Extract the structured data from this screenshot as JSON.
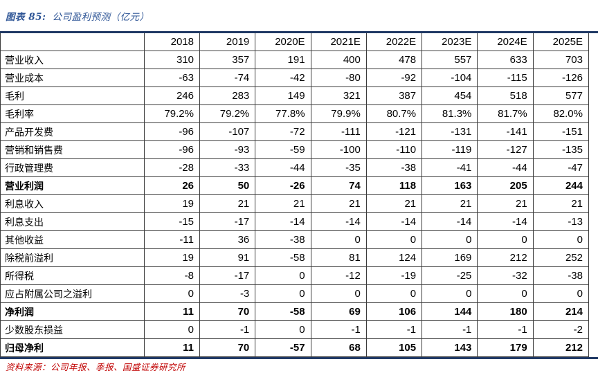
{
  "figure": {
    "caption_prefix": "图表 85:",
    "caption_title": "公司盈利预测（亿元）",
    "source": "资料来源：公司年报、季报、国盛证券研究所"
  },
  "colors": {
    "caption_blue": "#2E5596",
    "rule_navy": "#1F3864",
    "source_red": "#C00000",
    "grid_line": "#3b3b3b"
  },
  "chart_data": {
    "type": "table",
    "title": "公司盈利预测（亿元）",
    "columns": [
      "",
      "2018",
      "2019",
      "2020E",
      "2021E",
      "2022E",
      "2023E",
      "2024E",
      "2025E"
    ],
    "rows": [
      {
        "label": "营业收入",
        "bold": false,
        "values": [
          "310",
          "357",
          "191",
          "400",
          "478",
          "557",
          "633",
          "703"
        ]
      },
      {
        "label": "营业成本",
        "bold": false,
        "values": [
          "-63",
          "-74",
          "-42",
          "-80",
          "-92",
          "-104",
          "-115",
          "-126"
        ]
      },
      {
        "label": "毛利",
        "bold": false,
        "values": [
          "246",
          "283",
          "149",
          "321",
          "387",
          "454",
          "518",
          "577"
        ]
      },
      {
        "label": "毛利率",
        "bold": false,
        "values": [
          "79.2%",
          "79.2%",
          "77.8%",
          "79.9%",
          "80.7%",
          "81.3%",
          "81.7%",
          "82.0%"
        ]
      },
      {
        "label": "产品开发费",
        "bold": false,
        "values": [
          "-96",
          "-107",
          "-72",
          "-111",
          "-121",
          "-131",
          "-141",
          "-151"
        ]
      },
      {
        "label": "营销和销售费",
        "bold": false,
        "values": [
          "-96",
          "-93",
          "-59",
          "-100",
          "-110",
          "-119",
          "-127",
          "-135"
        ]
      },
      {
        "label": "行政管理费",
        "bold": false,
        "values": [
          "-28",
          "-33",
          "-44",
          "-35",
          "-38",
          "-41",
          "-44",
          "-47"
        ]
      },
      {
        "label": "营业利润",
        "bold": true,
        "values": [
          "26",
          "50",
          "-26",
          "74",
          "118",
          "163",
          "205",
          "244"
        ]
      },
      {
        "label": "利息收入",
        "bold": false,
        "values": [
          "19",
          "21",
          "21",
          "21",
          "21",
          "21",
          "21",
          "21"
        ]
      },
      {
        "label": "利息支出",
        "bold": false,
        "values": [
          "-15",
          "-17",
          "-14",
          "-14",
          "-14",
          "-14",
          "-14",
          "-13"
        ]
      },
      {
        "label": "其他收益",
        "bold": false,
        "values": [
          "-11",
          "36",
          "-38",
          "0",
          "0",
          "0",
          "0",
          "0"
        ]
      },
      {
        "label": "除税前溢利",
        "bold": false,
        "values": [
          "19",
          "91",
          "-58",
          "81",
          "124",
          "169",
          "212",
          "252"
        ]
      },
      {
        "label": "所得税",
        "bold": false,
        "values": [
          "-8",
          "-17",
          "0",
          "-12",
          "-19",
          "-25",
          "-32",
          "-38"
        ]
      },
      {
        "label": "应占附属公司之溢利",
        "bold": false,
        "values": [
          "0",
          "-3",
          "0",
          "0",
          "0",
          "0",
          "0",
          "0"
        ]
      },
      {
        "label": "净利润",
        "bold": true,
        "values": [
          "11",
          "70",
          "-58",
          "69",
          "106",
          "144",
          "180",
          "214"
        ]
      },
      {
        "label": "少数股东损益",
        "bold": false,
        "values": [
          "0",
          "-1",
          "0",
          "-1",
          "-1",
          "-1",
          "-1",
          "-2"
        ]
      },
      {
        "label": "归母净利",
        "bold": true,
        "values": [
          "11",
          "70",
          "-57",
          "68",
          "105",
          "143",
          "179",
          "212"
        ]
      }
    ]
  }
}
